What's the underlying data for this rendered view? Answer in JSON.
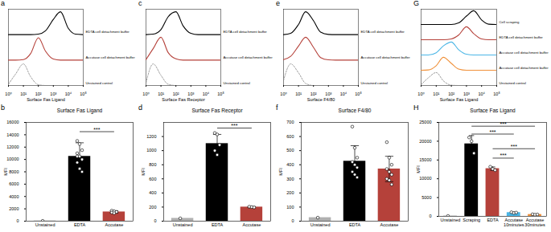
{
  "chart_data": [
    {
      "panel": "a",
      "type": "line",
      "log": "x",
      "xlabel": "Surface Fas Ligand",
      "tick_labels": "x",
      "x": [
        1,
        3,
        10,
        30,
        100,
        300,
        1000,
        3000,
        10000,
        30000,
        100000
      ],
      "xlim": [
        1,
        100000
      ],
      "xticks": [
        {
          "value": 1,
          "label": "10⁰"
        },
        {
          "value": 10,
          "label": "10¹"
        },
        {
          "value": 100,
          "label": "10²"
        },
        {
          "value": 1000,
          "label": "10³"
        },
        {
          "value": 10000,
          "label": "10⁴"
        },
        {
          "value": 100000,
          "label": "10⁵"
        }
      ],
      "ylim": [
        0,
        3
      ],
      "series": [
        {
          "name": "EDTA cell detachment buffer",
          "color": "#000000",
          "line_style": "solid",
          "values": [
            2,
            2,
            2,
            2,
            2.02,
            2.15,
            2.6,
            2.9,
            2.25,
            2.02,
            2
          ]
        },
        {
          "name": "Accutase cell detachment buffer",
          "color": "#b5413a",
          "line_style": "solid",
          "values": [
            1,
            1,
            1.02,
            1.25,
            1.88,
            1.35,
            1.04,
            1,
            1,
            1,
            1
          ]
        },
        {
          "name": "Unstained control",
          "color": "#888888",
          "line_style": "dashed",
          "values": [
            0.05,
            0.45,
            0.85,
            0.35,
            0.03,
            0,
            0,
            0,
            0,
            0,
            0
          ]
        }
      ]
    },
    {
      "panel": "b",
      "type": "bar",
      "title": "Surface Fas Ligand",
      "ylabel": "MFI",
      "categories": [
        "Unstained",
        "EDTA",
        "Accutase"
      ],
      "values": [
        50,
        10500,
        1500
      ],
      "colors": [
        "#b0b0b0",
        "#000000",
        "#b5413a"
      ],
      "errors": [
        null,
        2200,
        200
      ],
      "points": [
        [
          50
        ],
        [
          13000,
          12500,
          11500,
          11000,
          10500,
          10000,
          9500,
          8500,
          8000,
          10500
        ],
        [
          1700,
          1600,
          1500,
          1400,
          1300
        ]
      ],
      "ylim": [
        0,
        16000
      ],
      "yticks": [
        0,
        2000,
        4000,
        6000,
        8000,
        10000,
        12000,
        14000,
        16000
      ],
      "significance": [
        {
          "from": "EDTA",
          "to": "Accutase",
          "y": 14500,
          "label": "***"
        }
      ]
    },
    {
      "panel": "c",
      "type": "line",
      "log": "x",
      "xlabel": "Surface Fas Receptor",
      "tick_labels": "x",
      "x": [
        1,
        3,
        10,
        30,
        100,
        300,
        1000,
        3000,
        10000,
        30000,
        100000
      ],
      "xlim": [
        1,
        100000
      ],
      "xticks": [
        {
          "value": 1,
          "label": "10⁰"
        },
        {
          "value": 10,
          "label": "10¹"
        },
        {
          "value": 100,
          "label": "10²"
        },
        {
          "value": 1000,
          "label": "10³"
        },
        {
          "value": 10000,
          "label": "10⁴"
        },
        {
          "value": 100000,
          "label": "10⁵"
        }
      ],
      "ylim": [
        0,
        3
      ],
      "series": [
        {
          "name": "EDTA cell detachment buffer",
          "color": "#000000",
          "line_style": "solid",
          "values": [
            2,
            2.02,
            2.2,
            2.7,
            2.9,
            2.35,
            2.05,
            2,
            2,
            2,
            2
          ]
        },
        {
          "name": "Accutase cell detachment buffer",
          "color": "#b5413a",
          "line_style": "solid",
          "values": [
            1.02,
            1.45,
            1.9,
            1.3,
            1.05,
            1,
            1,
            1,
            1,
            1,
            1
          ]
        },
        {
          "name": "Unstained control",
          "color": "#888888",
          "line_style": "dashed",
          "values": [
            0.1,
            0.85,
            0.4,
            0.05,
            0,
            0,
            0,
            0,
            0,
            0,
            0
          ]
        }
      ]
    },
    {
      "panel": "d",
      "type": "bar",
      "title": "Surface Fas Receptor",
      "ylabel": "MFI",
      "categories": [
        "Unstained",
        "EDTA",
        "Accutase"
      ],
      "values": [
        40,
        1100,
        200
      ],
      "colors": [
        "#b0b0b0",
        "#000000",
        "#b5413a"
      ],
      "errors": [
        null,
        130,
        8
      ],
      "points": [
        [
          40
        ],
        [
          1250,
          1230,
          1080,
          1000,
          940
        ],
        [
          205,
          200,
          195
        ]
      ],
      "ylim": [
        0,
        1400
      ],
      "yticks": [
        0,
        200,
        400,
        600,
        800,
        1000,
        1200
      ],
      "significance": [
        {
          "from": "EDTA",
          "to": "Accutase",
          "y": 1320,
          "label": "***"
        }
      ]
    },
    {
      "panel": "e",
      "type": "line",
      "log": "x",
      "xlabel": "Surface F4/80",
      "tick_labels": "x",
      "x": [
        1,
        3,
        10,
        30,
        100,
        300,
        1000,
        3000,
        10000,
        30000,
        100000
      ],
      "xlim": [
        1,
        100000
      ],
      "xticks": [
        {
          "value": 1,
          "label": "10⁰"
        },
        {
          "value": 10,
          "label": "10¹"
        },
        {
          "value": 100,
          "label": "10²"
        },
        {
          "value": 1000,
          "label": "10³"
        },
        {
          "value": 10000,
          "label": "10⁴"
        },
        {
          "value": 100000,
          "label": "10⁵"
        }
      ],
      "ylim": [
        0,
        3
      ],
      "series": [
        {
          "name": "EDTA cell detachment buffer",
          "color": "#000000",
          "line_style": "solid",
          "values": [
            2,
            2.05,
            2.4,
            2.9,
            2.55,
            2.1,
            2.01,
            2,
            2,
            2,
            2
          ]
        },
        {
          "name": "Accutase cell detachment buffer",
          "color": "#b5413a",
          "line_style": "solid",
          "values": [
            1.02,
            1.15,
            1.55,
            1.9,
            1.5,
            1.1,
            1.01,
            1,
            1,
            1,
            1
          ]
        },
        {
          "name": "Unstained control",
          "color": "#888888",
          "line_style": "dashed",
          "values": [
            0.2,
            0.85,
            0.5,
            0.08,
            0,
            0,
            0,
            0,
            0,
            0,
            0
          ]
        }
      ]
    },
    {
      "panel": "f",
      "type": "bar",
      "title": "Surface F4/80",
      "ylabel": "MFI",
      "categories": [
        "Unstained",
        "EDTA",
        "Accutase"
      ],
      "values": [
        25,
        425,
        370
      ],
      "colors": [
        "#b0b0b0",
        "#000000",
        "#b5413a"
      ],
      "errors": [
        null,
        110,
        90
      ],
      "points": [
        [
          25
        ],
        [
          670,
          520,
          450,
          420,
          400,
          380,
          350,
          330,
          310
        ],
        [
          560,
          450,
          400,
          370,
          350,
          330,
          300,
          290,
          260
        ]
      ],
      "ylim": [
        0,
        700
      ],
      "yticks": [
        0,
        100,
        200,
        300,
        400,
        500,
        600,
        700
      ]
    },
    {
      "panel": "G",
      "type": "line",
      "log": "x",
      "xlabel": "Surface Fas Ligand",
      "tick_labels": "x",
      "x": [
        1,
        3,
        10,
        30,
        100,
        300,
        1000,
        3000,
        10000,
        30000,
        100000
      ],
      "xlim": [
        1,
        100000
      ],
      "xticks": [
        {
          "value": 1,
          "label": "10⁰"
        },
        {
          "value": 10,
          "label": "10¹"
        },
        {
          "value": 100,
          "label": "10²"
        },
        {
          "value": 1000,
          "label": "10³"
        },
        {
          "value": 10000,
          "label": "10⁴"
        },
        {
          "value": 100000,
          "label": "10⁵"
        }
      ],
      "ylim": [
        0,
        5
      ],
      "series": [
        {
          "name": "Cell scraping",
          "color": "#000000",
          "line_style": "solid",
          "values": [
            4,
            4,
            4,
            4,
            4,
            4.1,
            4.55,
            4.9,
            4.3,
            4.02,
            4
          ]
        },
        {
          "name": "EDTA cell detachment buffer",
          "color": "#b5413a",
          "line_style": "solid",
          "values": [
            3,
            3,
            3,
            3,
            3.05,
            3.3,
            3.85,
            3.4,
            3.05,
            3,
            3
          ]
        },
        {
          "name": "Accutase cell detachment buffer",
          "color": "#4bb6e6",
          "line_style": "solid",
          "values": [
            2,
            2,
            2.15,
            2.6,
            2.85,
            2.35,
            2.05,
            2,
            2,
            2,
            2
          ]
        },
        {
          "name": "Accutase cell detachment buffer",
          "color": "#f0913a",
          "line_style": "solid",
          "values": [
            1,
            1.02,
            1.3,
            1.85,
            1.45,
            1.08,
            1,
            1,
            1,
            1,
            1
          ]
        },
        {
          "name": "Unstained control",
          "color": "#888888",
          "line_style": "dashed",
          "values": [
            0.05,
            0.5,
            0.85,
            0.3,
            0.02,
            0,
            0,
            0,
            0,
            0,
            0
          ]
        }
      ]
    },
    {
      "panel": "H",
      "type": "bar",
      "title": "Surface Fas Ligand",
      "ylabel": "MFI",
      "categories": [
        "Unstained",
        "Scraping",
        "EDTA",
        "Accutase\n10minutes",
        "Accutase\n30minutes"
      ],
      "values": [
        100,
        19300,
        12700,
        1000,
        500
      ],
      "colors": [
        "#b0b0b0",
        "#000000",
        "#b5413a",
        "#4bb6e6",
        "#f0913a"
      ],
      "errors": [
        null,
        2200,
        450,
        100,
        50
      ],
      "points": [
        [
          100
        ],
        [
          21000,
          20000,
          16800
        ],
        [
          13200,
          12600,
          12300
        ],
        [
          1100,
          900,
          1000
        ],
        [
          550,
          450,
          500
        ]
      ],
      "ylim": [
        0,
        25000
      ],
      "yticks": [
        0,
        5000,
        10000,
        15000,
        20000,
        25000
      ],
      "significance": [
        {
          "from": "Scraping",
          "to": "Accutase\n30minutes",
          "y": 24000,
          "label": "***"
        },
        {
          "from": "Scraping",
          "to": "Accutase\n10minutes",
          "y": 21900,
          "label": "***"
        },
        {
          "from": "EDTA",
          "to": "Accutase\n30minutes",
          "y": 18000,
          "label": "***"
        },
        {
          "from": "EDTA",
          "to": "Accutase\n10minutes",
          "y": 15500,
          "label": "***"
        }
      ]
    }
  ]
}
